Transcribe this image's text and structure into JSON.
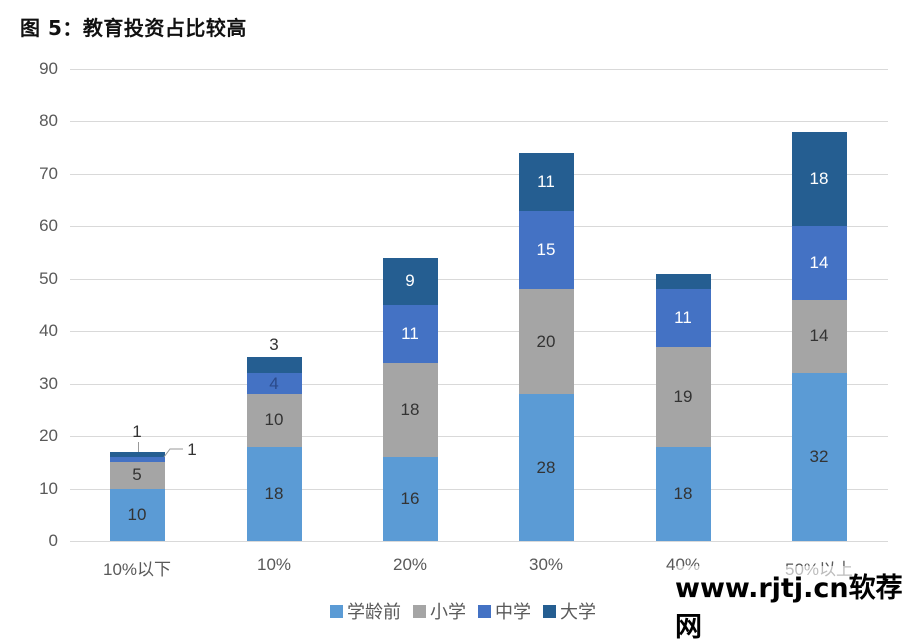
{
  "title": "图 5：教育投资占比较高",
  "chart_data": {
    "type": "bar",
    "stacked": true,
    "title": "图 5：教育投资占比较高",
    "xlabel": "",
    "ylabel": "",
    "ylim": [
      0,
      90
    ],
    "yticks": [
      0,
      10,
      20,
      30,
      40,
      50,
      60,
      70,
      80,
      90
    ],
    "grid": true,
    "legend_position": "bottom",
    "categories": [
      "10%以下",
      "10%",
      "20%",
      "30%",
      "40%",
      "50%以上"
    ],
    "series": [
      {
        "name": "学龄前",
        "color": "#5b9bd5",
        "values": [
          10,
          18,
          16,
          28,
          18,
          32
        ]
      },
      {
        "name": "小学",
        "color": "#a5a5a5",
        "values": [
          5,
          10,
          18,
          20,
          19,
          14
        ]
      },
      {
        "name": "中学",
        "color": "#4472c4",
        "values": [
          1,
          4,
          11,
          15,
          11,
          14
        ]
      },
      {
        "name": "大学",
        "color": "#255e91",
        "values": [
          1,
          3,
          9,
          11,
          3,
          18
        ]
      }
    ]
  },
  "yticks_labels": [
    "90",
    "80",
    "70",
    "60",
    "50",
    "40",
    "30",
    "20",
    "10",
    "0"
  ],
  "legend": [
    {
      "label": "学龄前",
      "color": "#5b9bd5"
    },
    {
      "label": "小学",
      "color": "#a5a5a5"
    },
    {
      "label": "中学",
      "color": "#4472c4"
    },
    {
      "label": "大学",
      "color": "#255e91"
    }
  ],
  "watermark": "www.rjtj.cn软荐网"
}
